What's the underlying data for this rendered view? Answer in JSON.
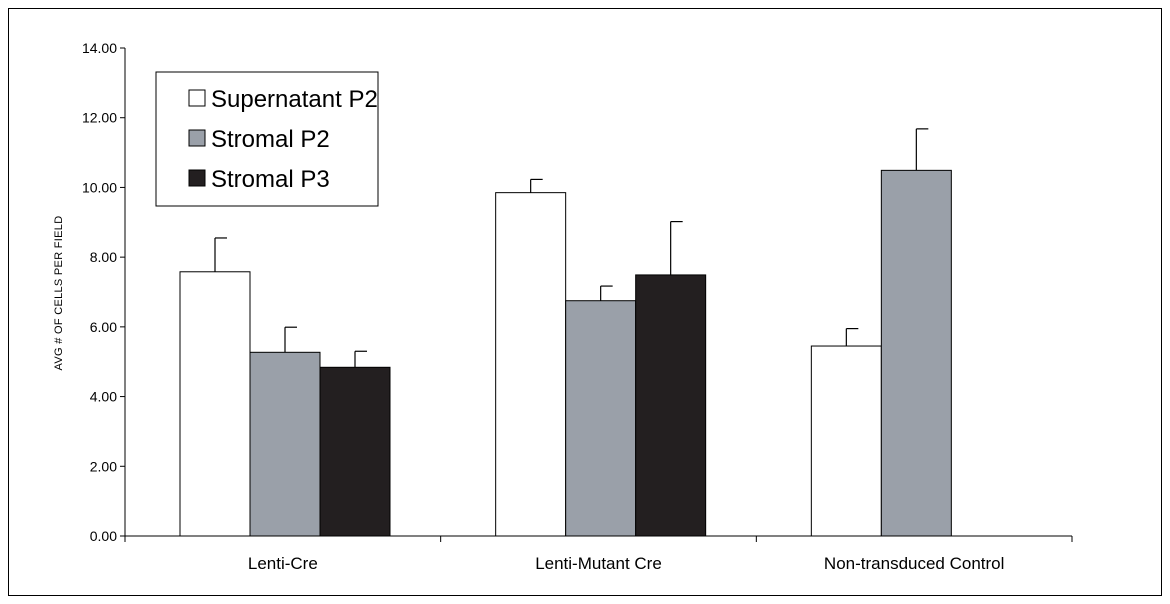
{
  "chart_data": {
    "type": "bar",
    "title": "",
    "xlabel": "",
    "ylabel": "AVG # OF CELLS PER FIELD",
    "ylim": [
      0,
      14
    ],
    "y_tick_step": 2,
    "y_tick_labels": [
      "0.00",
      "2.00",
      "4.00",
      "6.00",
      "8.00",
      "10.00",
      "12.00",
      "14.00"
    ],
    "grid": false,
    "legend_position": "top-left",
    "categories": [
      "Lenti-Cre",
      "Lenti-Mutant Cre",
      "Non-transduced Control"
    ],
    "series": [
      {
        "name": "Supernatant P2",
        "color": "#ffffff",
        "values": [
          7.58,
          9.85,
          5.45
        ],
        "errors": [
          0.97,
          0.38,
          0.5
        ]
      },
      {
        "name": "Stromal P2",
        "color": "#9aa0a9",
        "values": [
          5.27,
          6.75,
          10.49
        ],
        "errors": [
          0.72,
          0.42,
          1.19
        ]
      },
      {
        "name": "Stromal P3",
        "color": "#231f20",
        "values": [
          4.84,
          7.49,
          null
        ],
        "errors": [
          0.46,
          1.53,
          null
        ]
      }
    ]
  }
}
